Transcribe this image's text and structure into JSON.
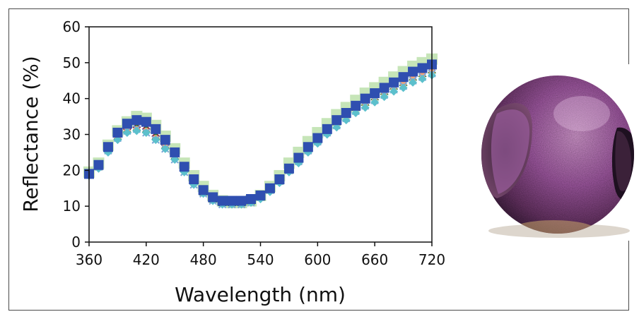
{
  "chart_data": {
    "type": "scatter",
    "title": "",
    "xlabel": "Wavelength (nm)",
    "ylabel": "Reflectance (%)",
    "xlim": [
      360,
      720
    ],
    "ylim": [
      0,
      60
    ],
    "x_ticks": [
      "360",
      "420",
      "480",
      "540",
      "600",
      "660",
      "720"
    ],
    "y_ticks": [
      "0",
      "10",
      "20",
      "30",
      "40",
      "50",
      "60"
    ],
    "grid": false,
    "legend": "none",
    "x": [
      360,
      370,
      380,
      390,
      400,
      410,
      420,
      430,
      440,
      450,
      460,
      470,
      480,
      490,
      500,
      510,
      520,
      530,
      540,
      550,
      560,
      570,
      580,
      590,
      600,
      610,
      620,
      630,
      640,
      650,
      660,
      670,
      680,
      690,
      700,
      710,
      720
    ],
    "series": [
      {
        "color": "#c6e5b8",
        "marker": "square",
        "values": [
          19.5,
          22,
          27,
          31,
          33.5,
          35,
          34.5,
          32.5,
          29.5,
          26,
          22,
          18.5,
          15.5,
          13,
          11.5,
          11,
          11,
          11.5,
          13,
          15.5,
          18.5,
          22,
          25,
          28,
          30.5,
          33,
          35.5,
          37.5,
          39.5,
          41.5,
          43,
          44.5,
          46,
          47.5,
          49,
          50,
          51
        ]
      },
      {
        "color": "#8b1a3a",
        "marker": "diamond",
        "values": [
          19,
          21,
          26,
          29.5,
          31.5,
          32,
          31.5,
          29.5,
          27,
          24,
          20.5,
          17,
          14.5,
          12.5,
          11.5,
          11,
          11,
          11.5,
          12.5,
          14.5,
          17,
          20,
          23,
          26,
          28.5,
          31,
          33.5,
          35.5,
          37.5,
          39.5,
          41,
          42.5,
          44,
          45,
          46.5,
          47.5,
          48.5
        ]
      },
      {
        "color": "#1f7a3a",
        "marker": "triangle",
        "values": [
          19,
          21,
          26,
          29.5,
          31.5,
          32,
          31.5,
          29.5,
          27,
          24,
          20.5,
          17,
          14,
          12,
          11,
          11,
          11,
          11.5,
          12.5,
          14.5,
          17,
          20,
          23,
          26,
          28.5,
          31,
          33.5,
          35.5,
          37.5,
          39,
          40.5,
          42,
          43.5,
          44.5,
          46,
          47,
          48
        ]
      },
      {
        "color": "#f2a57a",
        "marker": "circle",
        "values": [
          19,
          21,
          25.5,
          29,
          31,
          31.5,
          31,
          29,
          26.5,
          23.5,
          20,
          16.5,
          14,
          12,
          11,
          10.5,
          10.5,
          11,
          12.5,
          14.5,
          17,
          20,
          22.5,
          25.5,
          28,
          30.5,
          33,
          35,
          37,
          38.5,
          40,
          41.5,
          43,
          44,
          45.5,
          46.5,
          47.5
        ]
      },
      {
        "color": "#7aa6d6",
        "marker": "x",
        "values": [
          19,
          21,
          25.5,
          29,
          31,
          31.5,
          30.5,
          28.5,
          26,
          23,
          19.5,
          16,
          13.5,
          11.5,
          10.5,
          10.5,
          10.5,
          11,
          12.5,
          14.5,
          17,
          20,
          22.5,
          25.5,
          28,
          30.5,
          32.5,
          34.5,
          36.5,
          38,
          39.5,
          41,
          42.5,
          43.5,
          45,
          46,
          47
        ]
      },
      {
        "color": "#5cc0cc",
        "marker": "diamond",
        "values": [
          18.5,
          20.5,
          25,
          28.5,
          30.5,
          31,
          30.5,
          28.5,
          26,
          23,
          19.5,
          16,
          13.5,
          11.5,
          10.5,
          10.5,
          10.5,
          11,
          12,
          14,
          16.5,
          19.5,
          22,
          25,
          27.5,
          30,
          32,
          34,
          36,
          37.5,
          39,
          40.5,
          42,
          43,
          44.5,
          45.5,
          46.5
        ]
      },
      {
        "color": "#2f4fb0",
        "marker": "square",
        "values": [
          19,
          21.5,
          26.5,
          30.5,
          33,
          34,
          33.5,
          31.5,
          28.5,
          25,
          21,
          17.5,
          14.5,
          12.5,
          11.5,
          11.5,
          11.5,
          12,
          13,
          15,
          17.5,
          20.5,
          23.5,
          26.5,
          29,
          31.5,
          34,
          36,
          38,
          40,
          41.5,
          43,
          44.5,
          46,
          47.5,
          48.5,
          49.5
        ]
      }
    ]
  },
  "photo": {
    "subject_icon": "titanium-sphere-photo",
    "colors": {
      "purple": "#a45aa6",
      "dark": "#2a1530",
      "gold": "#c9a66a",
      "shadow": "#d4ccc0"
    }
  }
}
